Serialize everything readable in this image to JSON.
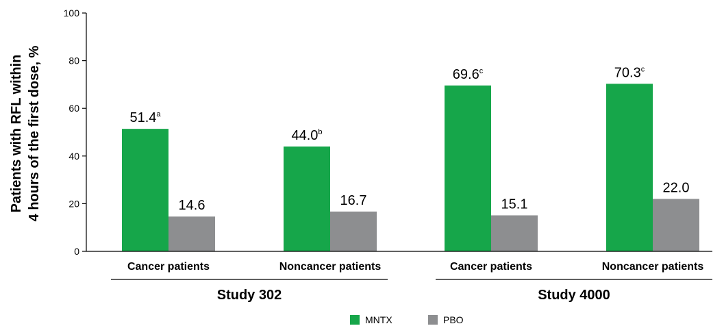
{
  "colors": {
    "mntx": "#16a64a",
    "pbo": "#8d8e90"
  },
  "chart_data": {
    "type": "bar",
    "ylabel": "Patients with RFL within\n4 hours of the first dose, %",
    "ylim": [
      0,
      100
    ],
    "yticks": [
      "0",
      "20",
      "40",
      "60",
      "80",
      "100"
    ],
    "categories": [
      "Cancer patients",
      "Noncancer patients",
      "Cancer patients",
      "Noncancer patients"
    ],
    "groups": [
      {
        "label": "Study 302",
        "categories": [
          0,
          1
        ]
      },
      {
        "label": "Study 4000",
        "categories": [
          2,
          3
        ]
      }
    ],
    "series": [
      {
        "name": "MNTX",
        "values": [
          51.4,
          44.0,
          69.6,
          70.3
        ],
        "labels": [
          "51.4",
          "44.0",
          "69.6",
          "70.3"
        ],
        "superscripts": [
          "a",
          "b",
          "c",
          "c"
        ]
      },
      {
        "name": "PBO",
        "values": [
          14.6,
          16.7,
          15.1,
          22.0
        ],
        "labels": [
          "14.6",
          "16.7",
          "15.1",
          "22.0"
        ],
        "superscripts": [
          "",
          "",
          "",
          ""
        ]
      }
    ],
    "legend_position": "bottom-center",
    "grid": false
  }
}
